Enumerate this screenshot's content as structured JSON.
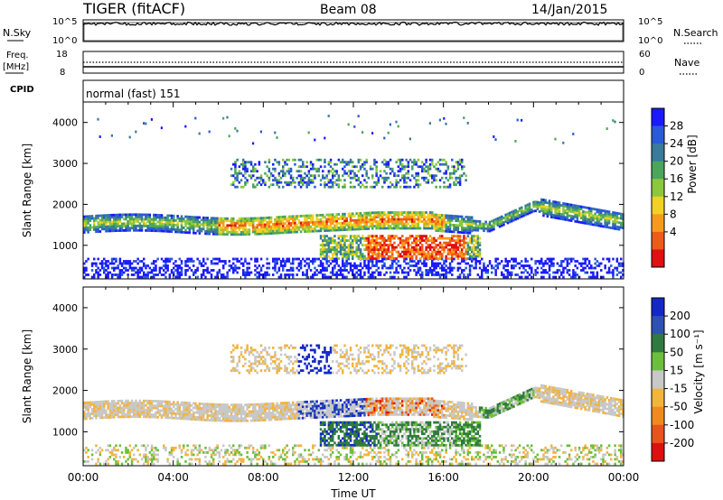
{
  "header": {
    "title": "TIGER (fitACF)",
    "beam": "Beam 08",
    "date": "14/Jan/2015"
  },
  "nsky": {
    "left_label": "N.Sky",
    "right_label": "N.Search",
    "left_ticks": [
      "10^5",
      "10^0"
    ],
    "right_ticks": [
      "10^5",
      "10^0"
    ]
  },
  "freq": {
    "left_label_1": "Freq.",
    "left_label_2": "[MHz]",
    "right_label": "Nave",
    "left_ticks": [
      "18",
      "8"
    ],
    "right_ticks": [
      "60",
      "0"
    ]
  },
  "cpid": {
    "label": "CPID",
    "text": "normal (fast) 151"
  },
  "chart_data": [
    {
      "type": "heatmap",
      "title": "",
      "xlabel": "",
      "ylabel": "Slant Range [km]",
      "xlim": [
        "00:00",
        "24:00"
      ],
      "ylim": [
        180,
        4500
      ],
      "yticks": [
        "4000",
        "3000",
        "2000",
        "1000"
      ],
      "grid": false,
      "colorbar": {
        "label": "Power [dB]",
        "ticks": [
          "28",
          "24",
          "20",
          "16",
          "12",
          "8",
          "4"
        ],
        "colors": [
          "#1a1aff",
          "#2a5ad8",
          "#3a7a9a",
          "#4aa65a",
          "#8cc83c",
          "#f2d024",
          "#f79a1c",
          "#ee5a18",
          "#e10e12"
        ]
      }
    },
    {
      "type": "heatmap",
      "title": "",
      "xlabel": "Time UT",
      "ylabel": "Slant Range [km]",
      "xlim": [
        "00:00",
        "24:00"
      ],
      "ylim": [
        180,
        4500
      ],
      "yticks": [
        "4000",
        "3000",
        "2000",
        "1000"
      ],
      "xticks": [
        "00:00",
        "04:00",
        "08:00",
        "12:00",
        "16:00",
        "20:00",
        "00:00"
      ],
      "grid": false,
      "colorbar": {
        "label": "Velocity [m s⁻¹]",
        "ticks": [
          "200",
          "100",
          "50",
          "15",
          "-15",
          "-50",
          "-100",
          "-200"
        ],
        "colors": [
          "#1428c8",
          "#2e52b4",
          "#2f7a40",
          "#6cbf3a",
          "#c8c8c8",
          "#f3b43c",
          "#f18a1c",
          "#e8541c",
          "#e00f0f"
        ]
      }
    }
  ]
}
